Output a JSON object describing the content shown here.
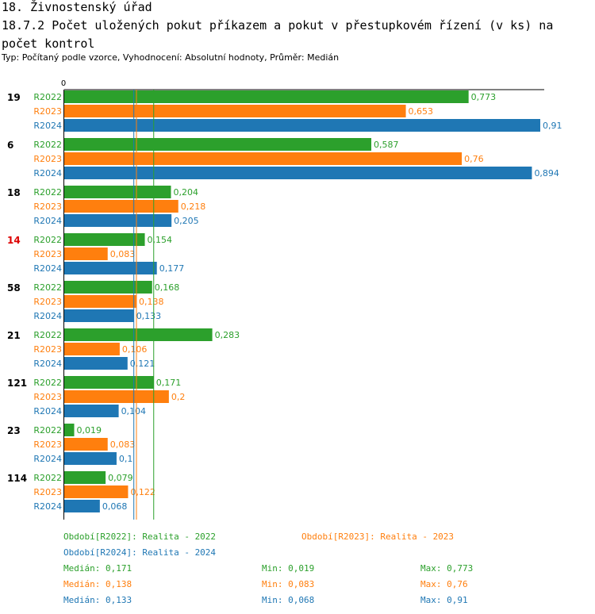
{
  "header": {
    "title": "18. Živnostenský úřad",
    "subtitle": "18.7.2 Počet uložených pokut příkazem a pokut v přestupkovém řízení (v ks) na počet kontrol",
    "type_line": "Typ: Počítaný podle vzorce, Vyhodnocení: Absolutní hodnoty, Průměr: Medián"
  },
  "colors": {
    "R2022": "#2ca02c",
    "R2023": "#ff7f0e",
    "R2024": "#1f77b4",
    "highlight_group": "#dd0000",
    "default_group": "#000000"
  },
  "chart_data": {
    "type": "bar",
    "orientation": "horizontal",
    "axis_zero_label": "0",
    "xlim": [
      0,
      0.91
    ],
    "groups": [
      "19",
      "6",
      "18",
      "14",
      "58",
      "21",
      "121",
      "23",
      "114"
    ],
    "highlight_group": "14",
    "series": [
      {
        "name": "R2022",
        "values": [
          0.773,
          0.587,
          0.204,
          0.154,
          0.168,
          0.283,
          0.171,
          0.019,
          0.079
        ],
        "labels": [
          "0,773",
          "0,587",
          "0,204",
          "0,154",
          "0,168",
          "0,283",
          "0,171",
          "0,019",
          "0,079"
        ],
        "median": 0.171
      },
      {
        "name": "R2023",
        "values": [
          0.653,
          0.76,
          0.218,
          0.083,
          0.138,
          0.106,
          0.2,
          0.083,
          0.122
        ],
        "labels": [
          "0,653",
          "0,76",
          "0,218",
          "0,083",
          "0,138",
          "0,106",
          "0,2",
          "0,083",
          "0,122"
        ],
        "median": 0.138
      },
      {
        "name": "R2024",
        "values": [
          0.91,
          0.894,
          0.205,
          0.177,
          0.133,
          0.121,
          0.104,
          0.1,
          0.068
        ],
        "labels": [
          "0,91",
          "0,894",
          "0,205",
          "0,177",
          "0,133",
          "0,121",
          "0,104",
          "0,1",
          "0,068"
        ],
        "median": 0.133
      }
    ]
  },
  "legend": {
    "periods": [
      "Období[R2022]: Realita - 2022",
      "Období[R2023]: Realita - 2023",
      "Období[R2024]: Realita - 2024"
    ],
    "stats": [
      {
        "median": "Medián: 0,171",
        "min": "Min: 0,019",
        "max": "Max: 0,773"
      },
      {
        "median": "Medián: 0,138",
        "min": "Min: 0,083",
        "max": "Max: 0,76"
      },
      {
        "median": "Medián: 0,133",
        "min": "Min: 0,068",
        "max": "Max: 0,91"
      }
    ]
  }
}
